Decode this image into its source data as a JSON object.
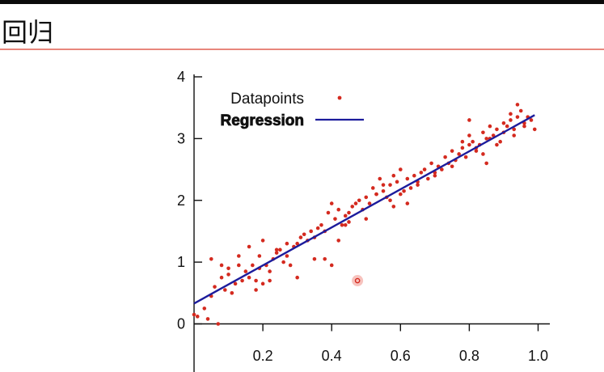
{
  "slide": {
    "title": "回归"
  },
  "colors": {
    "top_bar": "#0a0a0a",
    "title_rule": "#e8867c",
    "datapoint": "#d42a1f",
    "regression_line": "#1c1c9c",
    "axis": "#111111"
  },
  "chart_data": {
    "type": "scatter",
    "xlim": [
      0,
      1.02
    ],
    "ylim": [
      -0.3,
      4.05
    ],
    "x_ticks": [
      0.2,
      0.4,
      0.6,
      0.8,
      1.0
    ],
    "x_tick_labels": [
      "0.2",
      "0.4",
      "0.6",
      "0.8",
      "1.0"
    ],
    "y_ticks": [
      0,
      1,
      2,
      3,
      4
    ],
    "y_tick_labels": [
      "0",
      "1",
      "2",
      "3",
      "4"
    ],
    "xlabel": "",
    "ylabel": "",
    "grid": false,
    "legend": {
      "placement": "top-left",
      "entries": [
        {
          "label": "Datapoints",
          "marker": "dot"
        },
        {
          "label": "Regression",
          "marker": "line"
        }
      ]
    },
    "highlighted_point": {
      "x": 0.475,
      "y": 0.7
    },
    "regression": {
      "x": [
        0.0,
        0.99
      ],
      "y": [
        0.33,
        3.38
      ]
    },
    "series": [
      {
        "name": "Datapoints",
        "x": [
          0.0,
          0.01,
          0.03,
          0.04,
          0.05,
          0.06,
          0.07,
          0.08,
          0.09,
          0.1,
          0.11,
          0.12,
          0.13,
          0.14,
          0.15,
          0.16,
          0.17,
          0.18,
          0.19,
          0.2,
          0.05,
          0.08,
          0.1,
          0.13,
          0.16,
          0.19,
          0.21,
          0.22,
          0.23,
          0.24,
          0.25,
          0.26,
          0.27,
          0.28,
          0.29,
          0.3,
          0.31,
          0.32,
          0.33,
          0.34,
          0.2,
          0.24,
          0.27,
          0.3,
          0.35,
          0.36,
          0.37,
          0.38,
          0.39,
          0.4,
          0.41,
          0.42,
          0.43,
          0.44,
          0.45,
          0.46,
          0.47,
          0.48,
          0.49,
          0.38,
          0.4,
          0.42,
          0.45,
          0.5,
          0.51,
          0.52,
          0.53,
          0.54,
          0.55,
          0.56,
          0.57,
          0.58,
          0.59,
          0.6,
          0.61,
          0.62,
          0.63,
          0.64,
          0.65,
          0.66,
          0.5,
          0.53,
          0.55,
          0.58,
          0.6,
          0.67,
          0.68,
          0.69,
          0.7,
          0.71,
          0.72,
          0.73,
          0.74,
          0.75,
          0.76,
          0.77,
          0.78,
          0.79,
          0.8,
          0.81,
          0.65,
          0.7,
          0.75,
          0.78,
          0.8,
          0.82,
          0.83,
          0.84,
          0.85,
          0.86,
          0.87,
          0.88,
          0.89,
          0.9,
          0.91,
          0.92,
          0.93,
          0.94,
          0.95,
          0.96,
          0.82,
          0.84,
          0.86,
          0.88,
          0.9,
          0.92,
          0.94,
          0.96,
          0.98,
          0.99,
          0.8,
          0.85,
          0.93,
          0.97,
          0.18,
          0.22,
          0.35,
          0.44,
          0.57,
          0.62
        ],
        "y": [
          0.15,
          0.12,
          0.25,
          0.08,
          0.45,
          0.6,
          0.0,
          0.75,
          0.55,
          0.8,
          0.5,
          0.65,
          0.95,
          0.7,
          0.85,
          0.75,
          0.95,
          0.7,
          0.9,
          0.65,
          1.05,
          0.95,
          0.9,
          1.1,
          1.25,
          1.1,
          0.95,
          0.85,
          1.05,
          1.15,
          1.2,
          1.0,
          1.1,
          0.95,
          1.25,
          1.3,
          1.4,
          1.45,
          1.35,
          1.5,
          1.35,
          1.2,
          1.3,
          0.75,
          1.4,
          1.55,
          1.6,
          1.5,
          1.8,
          1.95,
          1.7,
          1.85,
          1.6,
          1.75,
          1.8,
          1.9,
          1.95,
          2.0,
          1.85,
          1.05,
          0.95,
          1.35,
          1.65,
          2.05,
          1.95,
          2.2,
          2.1,
          2.35,
          2.15,
          2.05,
          2.25,
          2.4,
          2.3,
          2.1,
          2.15,
          2.35,
          2.2,
          2.4,
          2.3,
          2.45,
          1.7,
          2.1,
          2.25,
          1.9,
          2.5,
          2.5,
          2.35,
          2.6,
          2.45,
          2.55,
          2.5,
          2.7,
          2.6,
          2.55,
          2.65,
          2.75,
          2.85,
          2.7,
          2.9,
          2.95,
          2.25,
          2.4,
          2.8,
          2.95,
          3.05,
          2.85,
          2.9,
          3.1,
          3.0,
          3.2,
          3.05,
          3.15,
          2.95,
          3.25,
          3.2,
          3.3,
          3.15,
          3.35,
          3.45,
          3.25,
          2.8,
          2.75,
          3.0,
          2.9,
          3.1,
          3.4,
          3.55,
          3.2,
          3.3,
          3.15,
          3.3,
          2.6,
          3.05,
          3.35,
          0.55,
          0.7,
          1.05,
          1.6,
          2.0,
          1.95
        ]
      }
    ]
  }
}
